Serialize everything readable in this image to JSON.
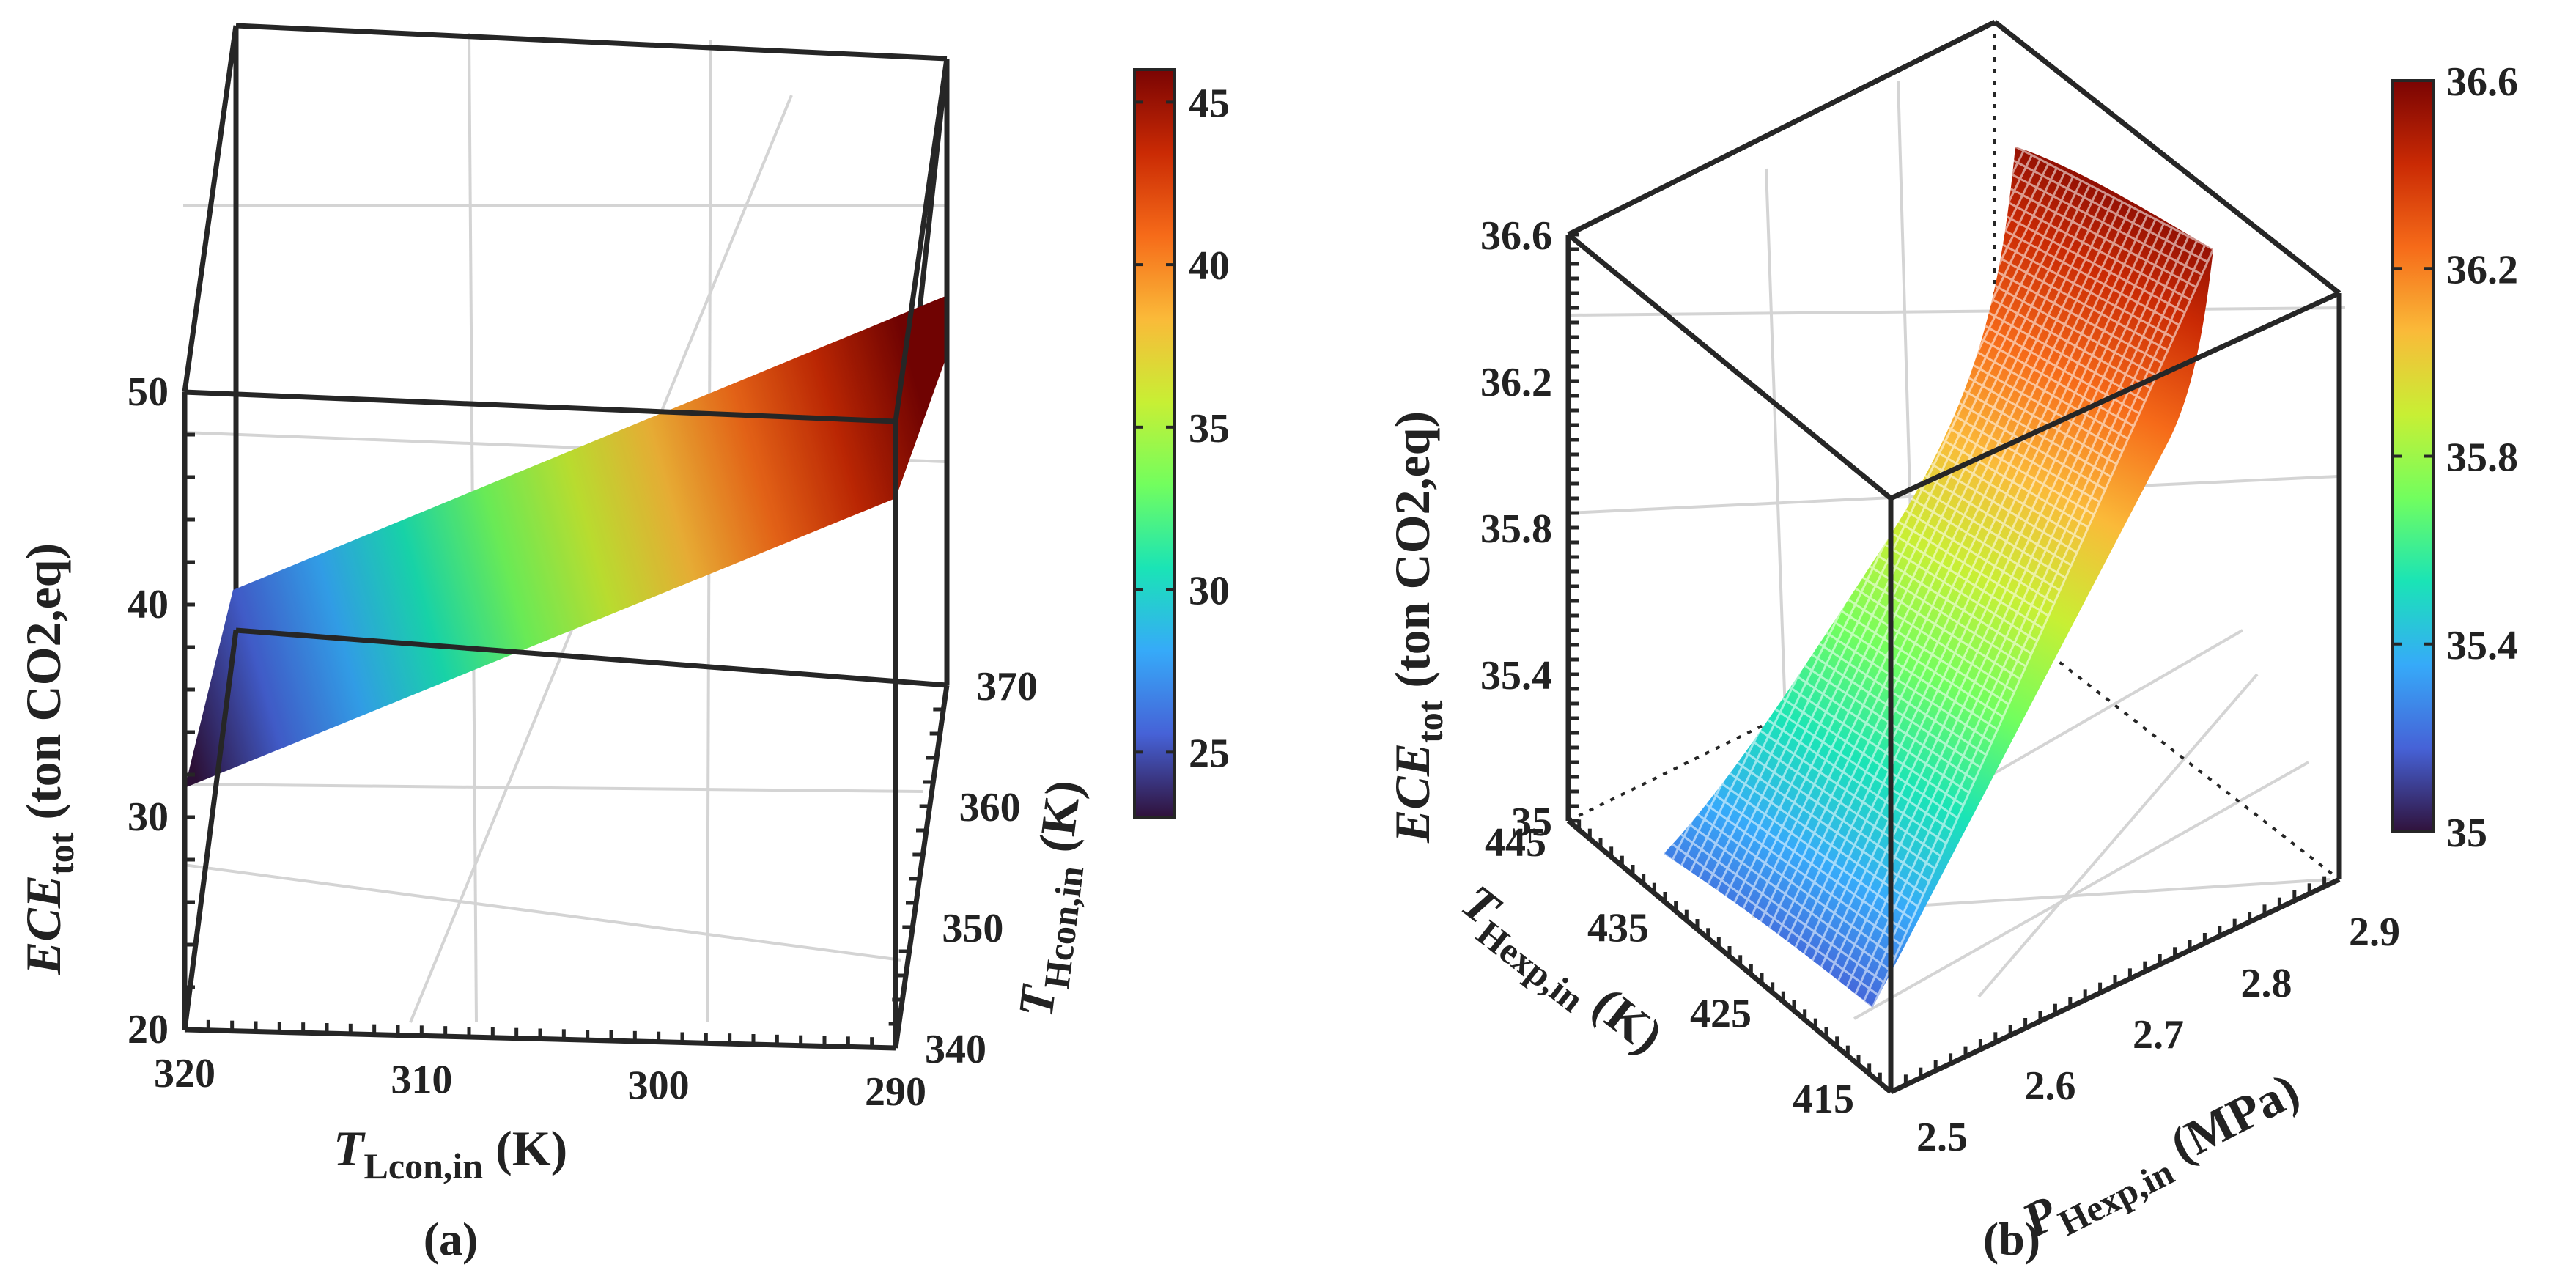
{
  "chart_data": [
    {
      "type": "surface",
      "panel_label": "(a)",
      "zlabel": {
        "main": "ECE",
        "sub": "tot",
        "tail": " (ton CO2,eq)"
      },
      "xlabel": {
        "main": "T",
        "sub": "Lcon,in",
        "tail": " (K)"
      },
      "ylabel": {
        "main": "T",
        "sub": "Hcon,in",
        "tail": " (K)"
      },
      "x_ticks": [
        "320",
        "310",
        "300",
        "290"
      ],
      "y_ticks": [
        "340",
        "350",
        "360",
        "370"
      ],
      "z_ticks": [
        "20",
        "30",
        "40",
        "50"
      ],
      "x_range": [
        290,
        320
      ],
      "y_range": [
        340,
        370
      ],
      "z_range": [
        20,
        50
      ],
      "colorbar": {
        "ticks": [
          "25",
          "30",
          "35",
          "40",
          "45"
        ],
        "range": [
          23,
          46
        ]
      },
      "colormap": [
        "#30123b",
        "#4662d7",
        "#36aaf9",
        "#1ae4b6",
        "#72fe5e",
        "#c8ef34",
        "#faba39",
        "#f66b19",
        "#ca2a04",
        "#7a0403"
      ]
    },
    {
      "type": "surface",
      "panel_label": "(b)",
      "zlabel": {
        "main": "ECE",
        "sub": "tot",
        "tail": " (ton CO2,eq)"
      },
      "xlabel": {
        "main": "P",
        "sub": "Hexp,in",
        "tail": " (MPa)"
      },
      "ylabel": {
        "main": "T",
        "sub": "Hexp,in",
        "tail": " (K)"
      },
      "x_ticks": [
        "2.5",
        "2.6",
        "2.7",
        "2.8",
        "2.9"
      ],
      "y_ticks": [
        "445",
        "435",
        "425",
        "415"
      ],
      "z_ticks": [
        "35",
        "35.4",
        "35.8",
        "36.2",
        "36.6"
      ],
      "x_range": [
        2.5,
        2.9
      ],
      "y_range": [
        415,
        445
      ],
      "z_range": [
        35,
        36.6
      ],
      "colorbar": {
        "ticks": [
          "35",
          "35.4",
          "35.8",
          "36.2",
          "36.6"
        ],
        "range": [
          35,
          36.6
        ]
      },
      "colormap": [
        "#30123b",
        "#4662d7",
        "#36aaf9",
        "#1ae4b6",
        "#72fe5e",
        "#c8ef34",
        "#faba39",
        "#f66b19",
        "#ca2a04",
        "#7a0403"
      ]
    }
  ]
}
